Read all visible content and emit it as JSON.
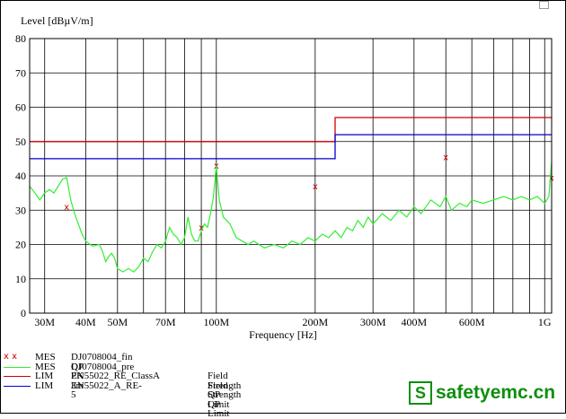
{
  "chart_data": {
    "type": "line",
    "ylabel": "Level [dBµV/m]",
    "xlabel": "Frequency [Hz]",
    "x_scale": "log",
    "xlim": [
      27000000,
      1050000000
    ],
    "ylim": [
      0,
      80
    ],
    "grid": true,
    "y_ticks": [
      0,
      10,
      20,
      30,
      40,
      50,
      60,
      70,
      80
    ],
    "x_ticks": [
      {
        "value": 30000000,
        "label": "30M"
      },
      {
        "value": 40000000,
        "label": "40M"
      },
      {
        "value": 50000000,
        "label": "50M"
      },
      {
        "value": 70000000,
        "label": "70M"
      },
      {
        "value": 100000000,
        "label": "100M"
      },
      {
        "value": 200000000,
        "label": "200M"
      },
      {
        "value": 300000000,
        "label": "300M"
      },
      {
        "value": 400000000,
        "label": "400M"
      },
      {
        "value": 600000000,
        "label": "600M"
      },
      {
        "value": 1000000000,
        "label": "1G"
      }
    ],
    "x_gridlines": [
      30000000,
      40000000,
      50000000,
      60000000,
      70000000,
      80000000,
      90000000,
      100000000,
      200000000,
      300000000,
      400000000,
      500000000,
      600000000,
      700000000,
      800000000,
      900000000,
      1000000000
    ],
    "legend": [
      {
        "symbol": "x x",
        "kind": "MES",
        "trace": "DJ0708004_fin QP",
        "description": "",
        "color": "#cc0000"
      },
      {
        "symbol": "",
        "kind": "MES",
        "trace": "DJ0708004_pre PK",
        "description": "",
        "color": "#33ee33"
      },
      {
        "symbol": "",
        "kind": "LIM",
        "trace": "EN55022_RE_ClassA 3m",
        "description": "Field Strength QP Limit",
        "color": "#cc0000"
      },
      {
        "symbol": "",
        "kind": "LIM",
        "trace": "EN55022_A_RE-5",
        "description": "Field Strength QP Limit",
        "color": "#0000cc"
      }
    ],
    "series": [
      {
        "name": "DJ0708004_fin QP",
        "style": "markers-x",
        "color": "#cc0000",
        "points": [
          [
            35000000,
            31
          ],
          [
            90000000,
            25
          ],
          [
            100000000,
            43
          ],
          [
            200000000,
            37
          ],
          [
            500000000,
            45.5
          ],
          [
            1050000000,
            39.5
          ]
        ]
      },
      {
        "name": "DJ0708004_pre PK",
        "style": "line",
        "color": "#33ee33",
        "points": [
          [
            27000000,
            37
          ],
          [
            28000000,
            35
          ],
          [
            29000000,
            33
          ],
          [
            30000000,
            35
          ],
          [
            31000000,
            36
          ],
          [
            32000000,
            35
          ],
          [
            33000000,
            37
          ],
          [
            34000000,
            39
          ],
          [
            35000000,
            39.5
          ],
          [
            36000000,
            33
          ],
          [
            37000000,
            29
          ],
          [
            38000000,
            26
          ],
          [
            39000000,
            23
          ],
          [
            40000000,
            21
          ],
          [
            42000000,
            19.5
          ],
          [
            44000000,
            20
          ],
          [
            45000000,
            18
          ],
          [
            46000000,
            15
          ],
          [
            47000000,
            16.5
          ],
          [
            48000000,
            17.5
          ],
          [
            49000000,
            16
          ],
          [
            50000000,
            13
          ],
          [
            52000000,
            12
          ],
          [
            54000000,
            13
          ],
          [
            56000000,
            12
          ],
          [
            58000000,
            13.5
          ],
          [
            60000000,
            16
          ],
          [
            62000000,
            15
          ],
          [
            64000000,
            18
          ],
          [
            66000000,
            20
          ],
          [
            68000000,
            19
          ],
          [
            70000000,
            21
          ],
          [
            72000000,
            25
          ],
          [
            74000000,
            23
          ],
          [
            76000000,
            22
          ],
          [
            78000000,
            20
          ],
          [
            80000000,
            22
          ],
          [
            82000000,
            28
          ],
          [
            84000000,
            23
          ],
          [
            86000000,
            21
          ],
          [
            88000000,
            21
          ],
          [
            90000000,
            24
          ],
          [
            92000000,
            26
          ],
          [
            94000000,
            25
          ],
          [
            96000000,
            29
          ],
          [
            98000000,
            34
          ],
          [
            100000000,
            43
          ],
          [
            102000000,
            33
          ],
          [
            105000000,
            28
          ],
          [
            110000000,
            26
          ],
          [
            115000000,
            22
          ],
          [
            120000000,
            21
          ],
          [
            125000000,
            20
          ],
          [
            130000000,
            21
          ],
          [
            140000000,
            19
          ],
          [
            150000000,
            20
          ],
          [
            160000000,
            19
          ],
          [
            170000000,
            21
          ],
          [
            180000000,
            20
          ],
          [
            190000000,
            22
          ],
          [
            200000000,
            21
          ],
          [
            210000000,
            23
          ],
          [
            220000000,
            22
          ],
          [
            230000000,
            24
          ],
          [
            240000000,
            22
          ],
          [
            250000000,
            25
          ],
          [
            260000000,
            24
          ],
          [
            270000000,
            27
          ],
          [
            280000000,
            25
          ],
          [
            290000000,
            28
          ],
          [
            300000000,
            26
          ],
          [
            320000000,
            29
          ],
          [
            340000000,
            27
          ],
          [
            360000000,
            30
          ],
          [
            380000000,
            28
          ],
          [
            400000000,
            31
          ],
          [
            420000000,
            29
          ],
          [
            450000000,
            33
          ],
          [
            480000000,
            31
          ],
          [
            500000000,
            34
          ],
          [
            520000000,
            30
          ],
          [
            550000000,
            32
          ],
          [
            580000000,
            31
          ],
          [
            600000000,
            33
          ],
          [
            650000000,
            32
          ],
          [
            700000000,
            33
          ],
          [
            750000000,
            34
          ],
          [
            800000000,
            33
          ],
          [
            850000000,
            34
          ],
          [
            900000000,
            33
          ],
          [
            950000000,
            34
          ],
          [
            1000000000,
            32
          ],
          [
            1030000000,
            34
          ],
          [
            1050000000,
            44
          ]
        ]
      },
      {
        "name": "EN55022_RE_ClassA 3m",
        "style": "step",
        "color": "#cc0000",
        "points": [
          [
            27000000,
            50
          ],
          [
            230000000,
            50
          ],
          [
            230000000,
            57
          ],
          [
            1050000000,
            57
          ]
        ]
      },
      {
        "name": "EN55022_A_RE-5",
        "style": "step",
        "color": "#0000cc",
        "points": [
          [
            27000000,
            45
          ],
          [
            230000000,
            45
          ],
          [
            230000000,
            52
          ],
          [
            1050000000,
            52
          ]
        ]
      }
    ]
  },
  "brand": {
    "icon_letter": "S",
    "text": "safetyemc.cn",
    "color": "#0d8f0d"
  }
}
